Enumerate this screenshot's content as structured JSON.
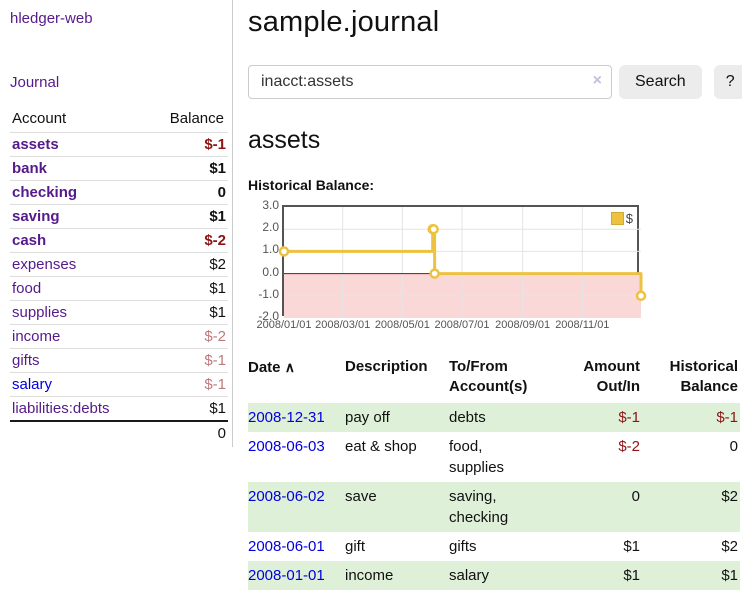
{
  "app": {
    "title": "hledger-web"
  },
  "sidebar": {
    "journal_label": "Journal",
    "table": {
      "headers": [
        "Account",
        "Balance"
      ],
      "rows": [
        {
          "account": "assets",
          "balance": "$-1"
        },
        {
          "account": "bank",
          "balance": "$1"
        },
        {
          "account": "checking",
          "balance": "0"
        },
        {
          "account": "saving",
          "balance": "$1"
        },
        {
          "account": "cash",
          "balance": "$-2"
        },
        {
          "account": "expenses",
          "balance": "$2"
        },
        {
          "account": "food",
          "balance": "$1"
        },
        {
          "account": "supplies",
          "balance": "$1"
        },
        {
          "account": "income",
          "balance": "$-2"
        },
        {
          "account": "gifts",
          "balance": "$-1"
        },
        {
          "account": "salary",
          "balance": "$-1"
        },
        {
          "account": "liabilities:debts",
          "balance": "$1"
        }
      ],
      "total": "0"
    }
  },
  "main": {
    "title": "sample.journal",
    "search": {
      "value": "inacct:assets",
      "clear_icon": "×",
      "button_label": "Search",
      "help_label": "?"
    },
    "account_heading": "assets",
    "chart_heading": "Historical Balance:",
    "register": {
      "headers": [
        "Date",
        "Description",
        "To/From Account(s)",
        "Amount Out/In",
        "Historical Balance"
      ],
      "sort_icon": "∧",
      "rows": [
        {
          "date": "2008-12-31",
          "description": "pay off",
          "accounts": "debts",
          "amount": "$-1",
          "balance": "$-1"
        },
        {
          "date": "2008-06-03",
          "description": "eat & shop",
          "accounts": "food, supplies",
          "amount": "$-2",
          "balance": "0"
        },
        {
          "date": "2008-06-02",
          "description": "save",
          "accounts": "saving, checking",
          "amount": "0",
          "balance": "$2"
        },
        {
          "date": "2008-06-01",
          "description": "gift",
          "accounts": "gifts",
          "amount": "$1",
          "balance": "$2"
        },
        {
          "date": "2008-01-01",
          "description": "income",
          "accounts": "salary",
          "amount": "$1",
          "balance": "$1"
        }
      ]
    }
  },
  "chart_data": {
    "type": "line",
    "title": "Historical Balance:",
    "series": [
      {
        "name": "$",
        "steps": true,
        "points": [
          [
            "2008-01-01",
            1
          ],
          [
            "2008-06-01",
            2
          ],
          [
            "2008-06-02",
            2
          ],
          [
            "2008-06-03",
            0
          ],
          [
            "2008-12-31",
            -1
          ]
        ]
      }
    ],
    "xlim": [
      "2008-01-01",
      "2008-12-31"
    ],
    "ylim": [
      -2,
      3
    ],
    "yticks": [
      "3.0",
      "2.0",
      "1.0",
      "0.0",
      "-1.0",
      "-2.0"
    ],
    "xticks": [
      "2008/01/01",
      "2008/03/01",
      "2008/05/01",
      "2008/07/01",
      "2008/09/01",
      "2008/11/01"
    ],
    "legend": {
      "label": "$",
      "position": "top-right"
    },
    "grid": true,
    "colors": {
      "line": "#edc240",
      "marker_fill": "#ffffff",
      "negative_fill": "#fbd8d8",
      "zero_line": "#a40000",
      "gridline": "#e4e4e4",
      "border": "#545454"
    }
  }
}
